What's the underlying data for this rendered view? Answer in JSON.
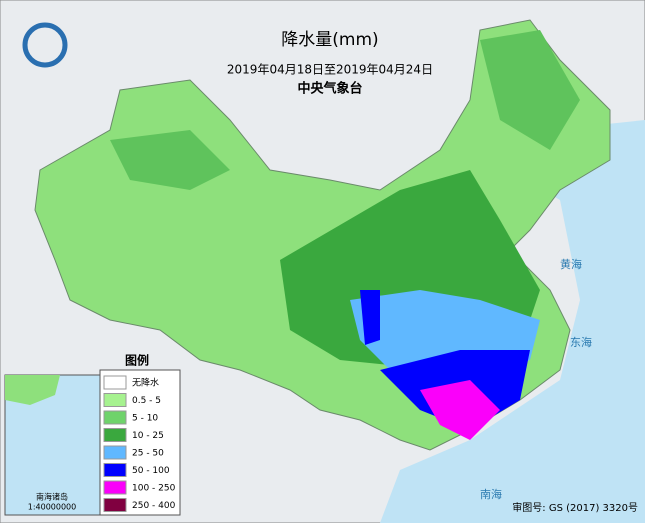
{
  "header": {
    "title": "降水量(mm)",
    "period": "2019年04月18日至2019年04月24日",
    "agency": "中央气象台"
  },
  "legend": {
    "title": "图例",
    "items": [
      {
        "label": "无降水",
        "color": "#ffffff"
      },
      {
        "label": "0.5 - 5",
        "color": "#a6f28f"
      },
      {
        "label": "5 - 10",
        "color": "#6fd36b"
      },
      {
        "label": "10 - 25",
        "color": "#3aa83e"
      },
      {
        "label": "25 - 50",
        "color": "#60b8ff"
      },
      {
        "label": "50 - 100",
        "color": "#0000fe"
      },
      {
        "label": "100 - 250",
        "color": "#fa00fa"
      },
      {
        "label": "250 - 400",
        "color": "#800040"
      }
    ]
  },
  "seas": [
    "东海",
    "南海",
    "黄海"
  ],
  "inset": {
    "title": "南海诸岛",
    "scale": "1:40000000"
  },
  "footer": {
    "approval": "审图号: GS (2017) 3320号"
  }
}
